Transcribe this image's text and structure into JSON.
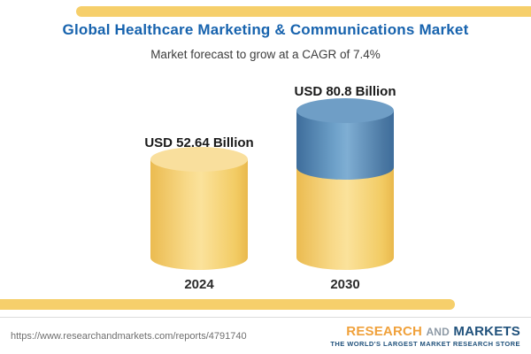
{
  "header": {
    "title": "Global Healthcare Marketing & Communications Market",
    "subtitle": "Market forecast to grow at a CAGR of 7.4%"
  },
  "chart_data": {
    "type": "bar",
    "title": "Global Healthcare Marketing & Communications Market",
    "subtitle": "Market forecast to grow at a CAGR of 7.4%",
    "categories": [
      "2024",
      "2030"
    ],
    "values": [
      52.64,
      80.8
    ],
    "unit": "USD Billion",
    "value_labels": [
      "USD 52.64 Billion",
      "USD 80.8 Billion"
    ],
    "cagr": "7.4%",
    "legend_position": "none",
    "grid": false,
    "colors": {
      "bar_yellow": "#F6CF6B",
      "bar_blue": "#4C7FA8",
      "title_blue": "#1763AE",
      "accent_yellow": "#F6CF6B"
    }
  },
  "footer": {
    "url": "https://www.researchandmarkets.com/reports/4791740",
    "logo": {
      "research": "RESEARCH",
      "and": "AND",
      "markets": "MARKETS",
      "tagline": "THE WORLD'S LARGEST MARKET RESEARCH STORE"
    }
  }
}
